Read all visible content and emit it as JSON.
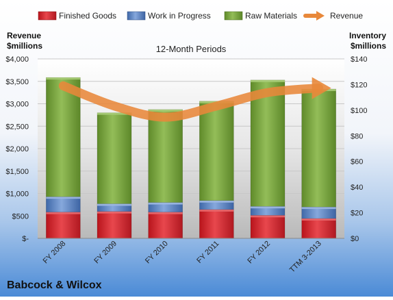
{
  "colors": {
    "finished_goods": "#d9252c",
    "work_in_progress": "#5b84c4",
    "raw_materials": "#77a33a",
    "revenue": "#e8883a",
    "background_top": "#ffffff",
    "background_bottom": "#4a8ad6"
  },
  "chart_data": {
    "type": "bar",
    "stacked": true,
    "company": "Babcock & Wilcox",
    "subtitle": "12-Month Periods",
    "ylabel_left": "Revenue\n$millions",
    "ylabel_right": "Inventory\n$millions",
    "categories": [
      "FY 2008",
      "FY 2009",
      "FY 2010",
      "FY 2011",
      "FY 2012",
      "TTM 3-2013"
    ],
    "y_left": {
      "min": 0,
      "max": 4000,
      "ticks": [
        "$-",
        "$500",
        "$1,000",
        "$1,500",
        "$2,000",
        "$2,500",
        "$3,000",
        "$3,500",
        "$4,000"
      ]
    },
    "y_right": {
      "min": 0,
      "max": 140,
      "ticks": [
        "$0",
        "$20",
        "$40",
        "$60",
        "$80",
        "$100",
        "$120",
        "$140"
      ]
    },
    "legend": {
      "position": "top",
      "entries": [
        "Finished Goods",
        "Work in Progress",
        "Raw Materials",
        "Revenue"
      ]
    },
    "series": [
      {
        "name": "Finished Goods",
        "axis": "right",
        "kind": "bar",
        "values": [
          20.5,
          21,
          20.5,
          22.5,
          18,
          15.5
        ]
      },
      {
        "name": "Work in Progress",
        "axis": "right",
        "kind": "bar",
        "values": [
          12,
          6,
          7.5,
          7,
          7,
          9
        ]
      },
      {
        "name": "Raw Materials",
        "axis": "right",
        "kind": "bar",
        "values": [
          93,
          71,
          72.5,
          77.5,
          98.5,
          92
        ]
      },
      {
        "name": "Revenue",
        "axis": "left",
        "kind": "line",
        "values": [
          3400,
          2950,
          2700,
          2950,
          3250,
          3350
        ]
      }
    ]
  }
}
